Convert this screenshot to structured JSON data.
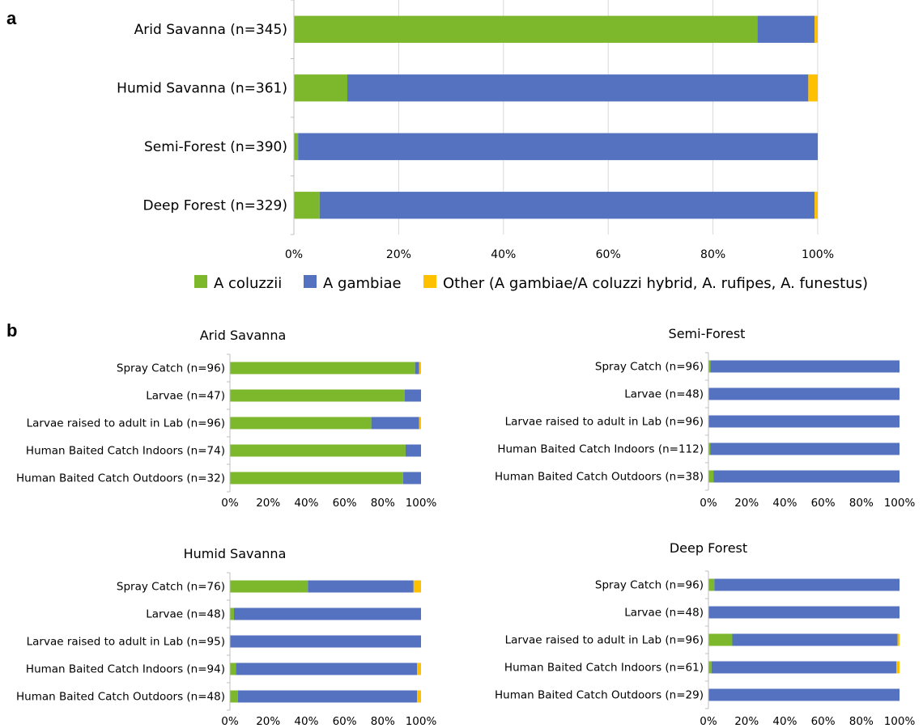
{
  "panel_labels": [
    "a",
    "b"
  ],
  "colors": {
    "A coluzzii": "#7cb72c",
    "A gambiae": "#5472c0",
    "Other": "#ffc000",
    "grid": "#d9d9d9",
    "axis": "#bfbfbf"
  },
  "legend": {
    "items": [
      {
        "label": "A coluzzii",
        "color": "#7cb72c"
      },
      {
        "label": "A gambiae",
        "color": "#5472c0"
      },
      {
        "label": "Other (A gambiae/A coluzzi hybrid, A. rufipes, A. funestus)",
        "color": "#ffc000"
      }
    ]
  },
  "chart_data": [
    {
      "id": "a",
      "type": "bar",
      "orientation": "horizontal",
      "stacked": "percent",
      "title": "",
      "categories": [
        "Arid Savanna (n=345)",
        "Humid Savanna (n=361)",
        "Semi-Forest (n=390)",
        "Deep Forest (n=329)"
      ],
      "series": [
        {
          "name": "A coluzzii",
          "values": [
            88.5,
            10.2,
            0.8,
            4.9
          ]
        },
        {
          "name": "A gambiae",
          "values": [
            10.9,
            88.0,
            99.2,
            94.5
          ]
        },
        {
          "name": "Other (A gambiae/A coluzzi hybrid, A. rufipes, A. funestus)",
          "values": [
            0.6,
            1.8,
            0.0,
            0.6
          ]
        }
      ],
      "x_ticks": [
        "0%",
        "20%",
        "40%",
        "60%",
        "80%",
        "100%"
      ],
      "xlim": [
        0,
        100
      ],
      "grid": true,
      "legend_position": "bottom"
    },
    {
      "id": "b-arid",
      "type": "bar",
      "orientation": "horizontal",
      "stacked": "percent",
      "title": "Arid Savanna",
      "categories": [
        "Spray Catch (n=96)",
        "Larvae  (n=47)",
        "Larvae raised to adult in Lab (n=96)",
        "Human Baited Catch Indoors (n=74)",
        "Human Baited Catch Outdoors (n=32)"
      ],
      "series": [
        {
          "name": "A coluzzii",
          "values": [
            96.9,
            91.5,
            74.0,
            91.9,
            90.6
          ]
        },
        {
          "name": "A gambiae",
          "values": [
            2.1,
            8.5,
            25.0,
            8.1,
            9.4
          ]
        },
        {
          "name": "Other",
          "values": [
            1.0,
            0.0,
            1.0,
            0.0,
            0.0
          ]
        }
      ],
      "x_ticks": [
        "0%",
        "20%",
        "40%",
        "60%",
        "80%",
        "100%"
      ],
      "xlim": [
        0,
        100
      ],
      "grid": false
    },
    {
      "id": "b-semi",
      "type": "bar",
      "orientation": "horizontal",
      "stacked": "percent",
      "title": "Semi-Forest",
      "categories": [
        "Spray Catch (n=96)",
        "Larvae  (n=48)",
        "Larvae raised to adult in Lab (n=96)",
        "Human Baited Catch Indoors (n=112)",
        "Human Baited Catch Outdoors (n=38)"
      ],
      "series": [
        {
          "name": "A coluzzii",
          "values": [
            1.0,
            0.0,
            0.0,
            0.9,
            2.6
          ]
        },
        {
          "name": "A gambiae",
          "values": [
            99.0,
            100.0,
            100.0,
            99.1,
            97.4
          ]
        },
        {
          "name": "Other",
          "values": [
            0.0,
            0.0,
            0.0,
            0.0,
            0.0
          ]
        }
      ],
      "x_ticks": [
        "0%",
        "20%",
        "40%",
        "60%",
        "80%",
        "100%"
      ],
      "xlim": [
        0,
        100
      ],
      "grid": false
    },
    {
      "id": "b-humid",
      "type": "bar",
      "orientation": "horizontal",
      "stacked": "percent",
      "title": "Humid Savanna",
      "categories": [
        "Spray Catch (n=76)",
        "Larvae  (n=48)",
        "Larvae raised to adult in Lab (n=95)",
        "Human Baited Catch Indoors (n=94)",
        "Human Baited Catch Outdoors (n=48)"
      ],
      "series": [
        {
          "name": "A coluzzii",
          "values": [
            40.8,
            2.1,
            0.0,
            3.2,
            4.2
          ]
        },
        {
          "name": "A gambiae",
          "values": [
            55.3,
            97.9,
            100.0,
            94.7,
            93.7
          ]
        },
        {
          "name": "Other",
          "values": [
            3.9,
            0.0,
            0.0,
            2.1,
            2.1
          ]
        }
      ],
      "x_ticks": [
        "0%",
        "20%",
        "40%",
        "60%",
        "80%",
        "100%"
      ],
      "xlim": [
        0,
        100
      ],
      "grid": false
    },
    {
      "id": "b-deep",
      "type": "bar",
      "orientation": "horizontal",
      "stacked": "percent",
      "title": "Deep Forest",
      "categories": [
        "Spray Catch (n=96)",
        "Larvae  (n=48)",
        "Larvae raised to adult in Lab (n=96)",
        "Human Baited Catch Indoors (n=61)",
        "Human Baited Catch Outdoors (n=29)"
      ],
      "series": [
        {
          "name": "A coluzzii",
          "values": [
            3.1,
            0.0,
            12.5,
            1.6,
            0.0
          ]
        },
        {
          "name": "A gambiae",
          "values": [
            96.9,
            100.0,
            86.5,
            96.7,
            100.0
          ]
        },
        {
          "name": "Other",
          "values": [
            0.0,
            0.0,
            1.0,
            1.7,
            0.0
          ]
        }
      ],
      "x_ticks": [
        "0%",
        "20%",
        "40%",
        "60%",
        "80%",
        "100%"
      ],
      "xlim": [
        0,
        100
      ],
      "grid": false
    }
  ]
}
